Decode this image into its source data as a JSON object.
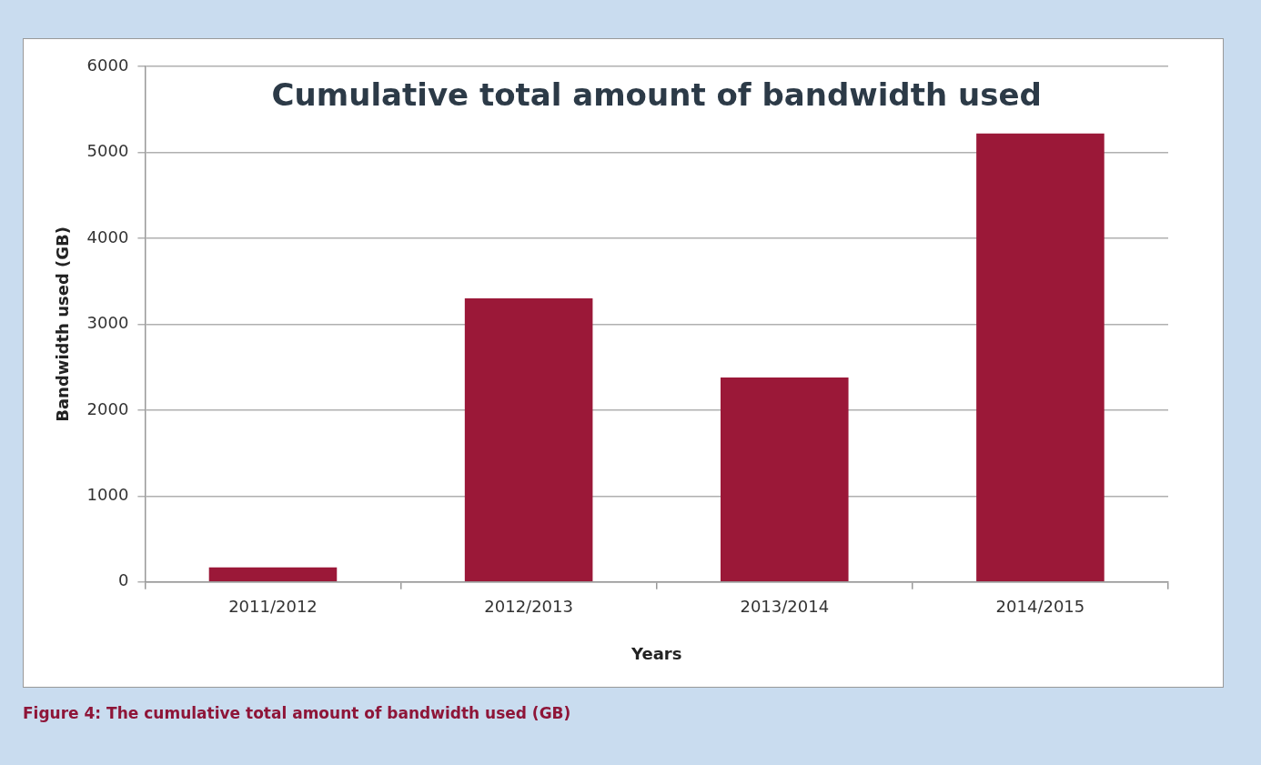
{
  "chart_data": {
    "type": "bar",
    "title": "Cumulative total amount of bandwidth used",
    "xlabel": "Years",
    "ylabel": "Bandwidth used (GB)",
    "categories": [
      "2011/2012",
      "2012/2013",
      "2013/2014",
      "2014/2015"
    ],
    "values": [
      170,
      3300,
      2380,
      5220
    ],
    "color": "#9b1838",
    "ylim": [
      0,
      6000
    ],
    "yticks": [
      0,
      1000,
      2000,
      3000,
      4000,
      5000,
      6000
    ],
    "grid": "y",
    "legend": false,
    "annotations": [
      "Figure 4: The cumulative total amount of bandwidth used (GB)"
    ]
  }
}
